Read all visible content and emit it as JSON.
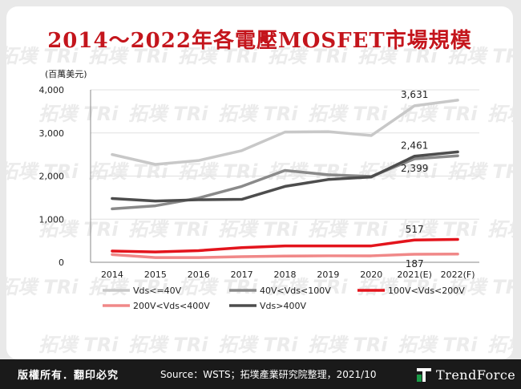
{
  "title": "2014～2022年各電壓MOSFET市場規模",
  "footer": {
    "rights": "版權所有．翻印必究",
    "source": "Source：WSTS；拓墣產業研究院整理，2021/10",
    "brand": "TrendForce"
  },
  "watermark": "拓墣 TRi",
  "colors": {
    "title": "#c4151c",
    "footer_bg": "#1a1a1a",
    "brand_accent": "#1a9a47"
  },
  "chart_data": {
    "type": "line",
    "unit_label": "(百萬美元)",
    "categories": [
      "2014",
      "2015",
      "2016",
      "2017",
      "2018",
      "2019",
      "2020",
      "2021(E)",
      "2022(F)"
    ],
    "ylim": [
      0,
      4000
    ],
    "yticks": [
      "0",
      "1,000",
      "2,000",
      "3,000",
      "4,000"
    ],
    "ytick_values": [
      0,
      1000,
      2000,
      3000,
      4000
    ],
    "grid": true,
    "legend_position": "bottom",
    "series": [
      {
        "name": "Vds<=40V",
        "color": "#c8c8c8",
        "values": [
          2500,
          2270,
          2360,
          2590,
          3020,
          3030,
          2940,
          3631,
          3760
        ]
      },
      {
        "name": "40V<Vds<100V",
        "color": "#8a8a8a",
        "values": [
          1240,
          1310,
          1490,
          1760,
          2130,
          2030,
          1990,
          2399,
          2470
        ]
      },
      {
        "name": "100V<Vds<200V",
        "color": "#e3141c",
        "values": [
          260,
          240,
          270,
          340,
          380,
          380,
          380,
          517,
          530
        ]
      },
      {
        "name": "200V<Vds<400V",
        "color": "#f08888",
        "values": [
          180,
          110,
          110,
          130,
          145,
          150,
          150,
          187,
          190
        ]
      },
      {
        "name": "Vds>400V",
        "color": "#4d4d4d",
        "values": [
          1480,
          1420,
          1450,
          1460,
          1760,
          1920,
          1980,
          2461,
          2560
        ]
      }
    ],
    "data_labels": [
      {
        "series": 0,
        "index": 7,
        "text": "3,631"
      },
      {
        "series": 4,
        "index": 7,
        "text": "2,461"
      },
      {
        "series": 1,
        "index": 7,
        "text": "2,399"
      },
      {
        "series": 2,
        "index": 7,
        "text": "517"
      },
      {
        "series": 3,
        "index": 7,
        "text": "187"
      }
    ]
  }
}
